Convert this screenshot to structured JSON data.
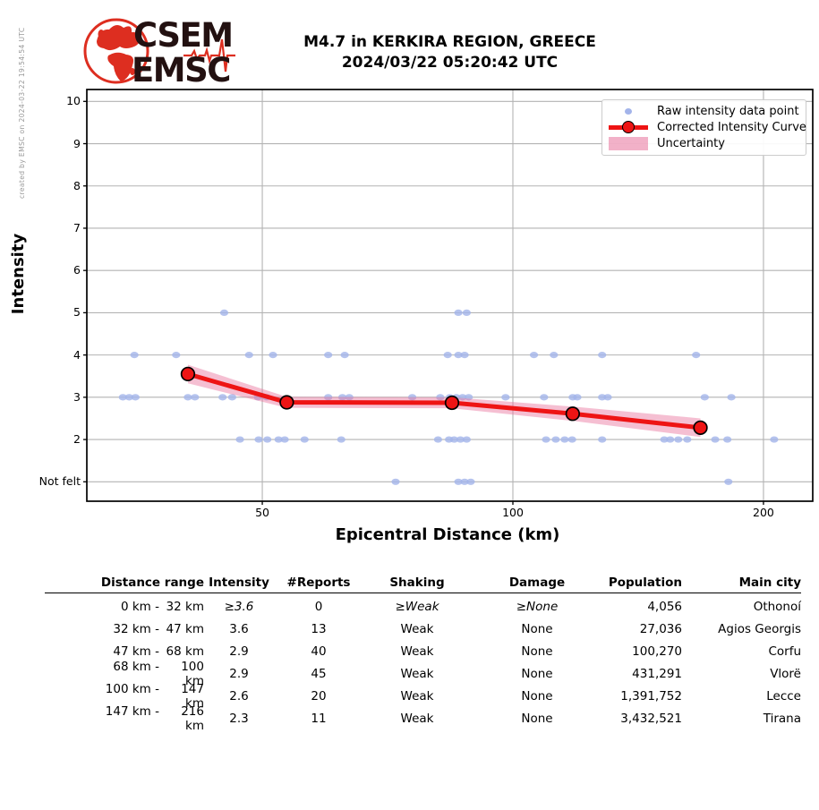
{
  "credit": "created by EMSC on 2024-03-22 19:54:54 UTC",
  "logo": {
    "line1": "CSEM",
    "line2": "EMSC"
  },
  "header": {
    "title_line1": "M4.7 in KERKIRA REGION, GREECE",
    "title_line2": "2024/03/22 05:20:42 UTC"
  },
  "chart_data": {
    "type": "scatter",
    "title": "",
    "xlabel": "Epicentral Distance (km)",
    "ylabel": "Intensity",
    "x_scale": "log",
    "x_tick_labels": [
      "50",
      "100",
      "200"
    ],
    "x_tick_values": [
      50,
      100,
      200
    ],
    "x_range": [
      31,
      229
    ],
    "y_tick_labels": [
      "10",
      "9",
      "8",
      "7",
      "6",
      "5",
      "4",
      "3",
      "2",
      "Not felt"
    ],
    "y_tick_values": [
      10,
      9,
      8,
      7,
      6,
      5,
      4,
      3,
      2,
      1
    ],
    "y_range": [
      0.54,
      10.28
    ],
    "grid": true,
    "legend_position": "upper right",
    "legend": [
      "Raw intensity data point",
      "Corrected Intensity Curve",
      "Uncertainty"
    ],
    "raw_points": [
      [
        45,
        5
      ],
      [
        86,
        5
      ],
      [
        88,
        5
      ],
      [
        35.1,
        4
      ],
      [
        39.4,
        4
      ],
      [
        48.2,
        4
      ],
      [
        51.5,
        4
      ],
      [
        60,
        4
      ],
      [
        62.8,
        4
      ],
      [
        83.5,
        4
      ],
      [
        86,
        4
      ],
      [
        87.5,
        4
      ],
      [
        106,
        4
      ],
      [
        112,
        4
      ],
      [
        128,
        4
      ],
      [
        166,
        4
      ],
      [
        34,
        3
      ],
      [
        34.6,
        3
      ],
      [
        35.2,
        3
      ],
      [
        40.7,
        3
      ],
      [
        41.5,
        3
      ],
      [
        44.8,
        3
      ],
      [
        46,
        3
      ],
      [
        49.4,
        3
      ],
      [
        50.6,
        3
      ],
      [
        60,
        3
      ],
      [
        62.4,
        3
      ],
      [
        63.6,
        3
      ],
      [
        75.7,
        3
      ],
      [
        81.8,
        3
      ],
      [
        84,
        3
      ],
      [
        85.5,
        3
      ],
      [
        87,
        3
      ],
      [
        88.5,
        3
      ],
      [
        98,
        3
      ],
      [
        109,
        3
      ],
      [
        118,
        3
      ],
      [
        119.5,
        3
      ],
      [
        128,
        3
      ],
      [
        130,
        3
      ],
      [
        170,
        3
      ],
      [
        183,
        3
      ],
      [
        47,
        2
      ],
      [
        49.5,
        2
      ],
      [
        50.7,
        2
      ],
      [
        52.3,
        2
      ],
      [
        53.2,
        2
      ],
      [
        56.2,
        2
      ],
      [
        62.2,
        2
      ],
      [
        81.3,
        2
      ],
      [
        83.8,
        2
      ],
      [
        85,
        2
      ],
      [
        86.5,
        2
      ],
      [
        88,
        2
      ],
      [
        109.6,
        2
      ],
      [
        112.6,
        2
      ],
      [
        115.4,
        2
      ],
      [
        117.8,
        2
      ],
      [
        128,
        2
      ],
      [
        152,
        2
      ],
      [
        154.5,
        2
      ],
      [
        158,
        2
      ],
      [
        162,
        2
      ],
      [
        175,
        2
      ],
      [
        181,
        2
      ],
      [
        206,
        2
      ],
      [
        72.3,
        1
      ],
      [
        86,
        1
      ],
      [
        87.5,
        1
      ],
      [
        89,
        1
      ],
      [
        181.5,
        1
      ]
    ],
    "curve_points": [
      [
        40.7,
        3.55
      ],
      [
        53.5,
        2.88
      ],
      [
        84.5,
        2.87
      ],
      [
        118,
        2.61
      ],
      [
        168,
        2.28
      ]
    ],
    "uncertainty_halfwidth": [
      0.22,
      0.13,
      0.13,
      0.17,
      0.22
    ],
    "colors": {
      "raw_point": "#a3b4ea",
      "curve": "#ee1414",
      "marker_edge": "#000000",
      "uncertainty": "#e8719b",
      "grid": "#b3b3b3",
      "axis": "#000000"
    }
  },
  "table": {
    "headers": [
      "Distance range",
      "Intensity",
      "#Reports",
      "Shaking",
      "Damage",
      "Population",
      "Main city"
    ],
    "rows": [
      {
        "range_from": "0 km -",
        "range_to": "32 km",
        "intensity": "≥3.6",
        "reports": "0",
        "shaking": "≥Weak",
        "damage": "≥None",
        "population": "4,056",
        "city": "Othonoí"
      },
      {
        "range_from": "32 km -",
        "range_to": "47 km",
        "intensity": "3.6",
        "reports": "13",
        "shaking": "Weak",
        "damage": "None",
        "population": "27,036",
        "city": "Agios Georgis"
      },
      {
        "range_from": "47 km -",
        "range_to": "68 km",
        "intensity": "2.9",
        "reports": "40",
        "shaking": "Weak",
        "damage": "None",
        "population": "100,270",
        "city": "Corfu"
      },
      {
        "range_from": "68 km -",
        "range_to": "100 km",
        "intensity": "2.9",
        "reports": "45",
        "shaking": "Weak",
        "damage": "None",
        "population": "431,291",
        "city": "Vlorë"
      },
      {
        "range_from": "100 km -",
        "range_to": "147 km",
        "intensity": "2.6",
        "reports": "20",
        "shaking": "Weak",
        "damage": "None",
        "population": "1,391,752",
        "city": "Lecce"
      },
      {
        "range_from": "147 km -",
        "range_to": "216 km",
        "intensity": "2.3",
        "reports": "11",
        "shaking": "Weak",
        "damage": "None",
        "population": "3,432,521",
        "city": "Tirana"
      }
    ]
  }
}
